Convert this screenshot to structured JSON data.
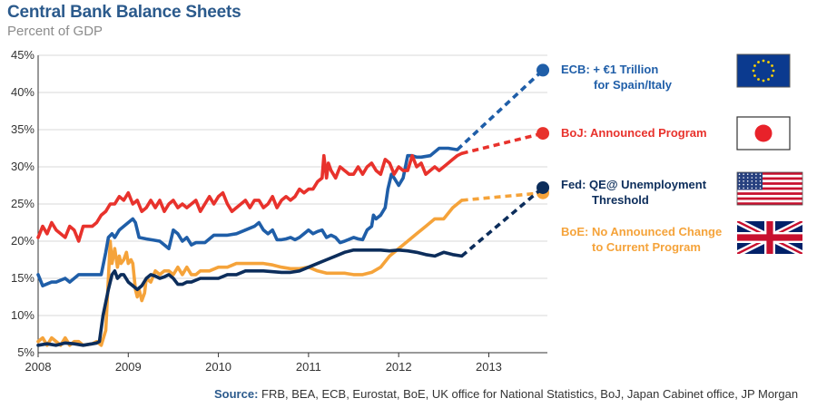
{
  "title": "Central Bank Balance Sheets",
  "subtitle": "Percent of GDP",
  "source_label": "Source:",
  "source_text": " FRB, BEA, ECB, Eurostat, BoE, UK office for National Statistics, BoJ, Japan Cabinet office, JP Morgan",
  "chart_data": {
    "type": "line",
    "title": "Central Bank Balance Sheets",
    "subtitle": "Percent of GDP",
    "x_ticks": [
      "2008",
      "2009",
      "2010",
      "2011",
      "2012",
      "2013"
    ],
    "y_ticks": [
      "5%",
      "10%",
      "15%",
      "20%",
      "25%",
      "30%",
      "35%",
      "40%",
      "45%"
    ],
    "xlim": [
      2008,
      2013.65
    ],
    "ylim": [
      5,
      45
    ],
    "grid": "horizontal",
    "series": [
      {
        "name": "ECB",
        "label": [
          "ECB: + €1 Trillion",
          "for Spain/Italy"
        ],
        "color": "#1f5ea8",
        "x": [
          2008.0,
          2008.05,
          2008.15,
          2008.2,
          2008.3,
          2008.35,
          2008.45,
          2008.6,
          2008.7,
          2008.75,
          2008.78,
          2008.82,
          2008.85,
          2008.9,
          2008.95,
          2009.0,
          2009.05,
          2009.08,
          2009.12,
          2009.2,
          2009.35,
          2009.45,
          2009.5,
          2009.55,
          2009.6,
          2009.65,
          2009.7,
          2009.75,
          2009.85,
          2009.95,
          2010.0,
          2010.1,
          2010.2,
          2010.3,
          2010.4,
          2010.45,
          2010.5,
          2010.55,
          2010.6,
          2010.65,
          2010.7,
          2010.75,
          2010.8,
          2010.85,
          2010.9,
          2010.95,
          2011.0,
          2011.05,
          2011.1,
          2011.15,
          2011.2,
          2011.25,
          2011.3,
          2011.35,
          2011.4,
          2011.5,
          2011.55,
          2011.6,
          2011.65,
          2011.7,
          2011.72,
          2011.75,
          2011.8,
          2011.85,
          2011.88,
          2011.92,
          2011.95,
          2012.0,
          2012.05,
          2012.1,
          2012.15,
          2012.2,
          2012.25,
          2012.35,
          2012.45,
          2012.55,
          2012.65
        ],
        "values": [
          15.5,
          14.0,
          14.5,
          14.5,
          15.0,
          14.5,
          15.5,
          15.5,
          15.5,
          18.5,
          20.5,
          21.0,
          20.5,
          21.5,
          22.0,
          22.5,
          23.0,
          22.5,
          20.5,
          20.3,
          20.0,
          19.0,
          21.5,
          21.0,
          20.0,
          20.5,
          19.5,
          19.8,
          19.8,
          20.8,
          20.8,
          20.8,
          21.0,
          21.5,
          22.0,
          22.5,
          21.5,
          21.0,
          21.5,
          20.2,
          20.2,
          20.3,
          20.5,
          20.2,
          20.5,
          21.0,
          21.5,
          21.0,
          21.3,
          21.5,
          20.5,
          20.8,
          20.5,
          19.8,
          20.0,
          20.5,
          20.3,
          20.2,
          21.5,
          22.0,
          23.5,
          23.0,
          23.5,
          24.5,
          27.0,
          29.0,
          28.5,
          27.5,
          28.5,
          31.5,
          31.5,
          31.3,
          31.3,
          31.5,
          32.5,
          32.5,
          32.3
        ],
        "projection": {
          "x": [
            2012.65,
            2013.6
          ],
          "values": [
            32.3,
            43.0
          ]
        }
      },
      {
        "name": "BoJ",
        "label": [
          "BoJ: Announced Program"
        ],
        "color": "#e8322c",
        "x": [
          2008.0,
          2008.05,
          2008.1,
          2008.15,
          2008.2,
          2008.25,
          2008.3,
          2008.35,
          2008.4,
          2008.45,
          2008.5,
          2008.55,
          2008.6,
          2008.65,
          2008.7,
          2008.75,
          2008.8,
          2008.85,
          2008.9,
          2008.95,
          2009.0,
          2009.05,
          2009.1,
          2009.15,
          2009.2,
          2009.25,
          2009.3,
          2009.35,
          2009.4,
          2009.45,
          2009.5,
          2009.55,
          2009.6,
          2009.65,
          2009.7,
          2009.75,
          2009.8,
          2009.85,
          2009.9,
          2009.95,
          2010.0,
          2010.05,
          2010.1,
          2010.15,
          2010.2,
          2010.25,
          2010.3,
          2010.35,
          2010.4,
          2010.45,
          2010.5,
          2010.55,
          2010.6,
          2010.65,
          2010.7,
          2010.75,
          2010.8,
          2010.85,
          2010.9,
          2010.95,
          2011.0,
          2011.05,
          2011.1,
          2011.15,
          2011.17,
          2011.2,
          2011.22,
          2011.25,
          2011.3,
          2011.35,
          2011.4,
          2011.45,
          2011.5,
          2011.55,
          2011.6,
          2011.65,
          2011.7,
          2011.75,
          2011.8,
          2011.85,
          2011.9,
          2011.95,
          2012.0,
          2012.05,
          2012.1,
          2012.15,
          2012.2,
          2012.25,
          2012.3,
          2012.35,
          2012.4,
          2012.45,
          2012.5,
          2012.55,
          2012.6,
          2012.65,
          2012.7
        ],
        "values": [
          20.5,
          22.0,
          21.0,
          22.5,
          21.5,
          21.0,
          20.5,
          22.0,
          21.5,
          20.0,
          22.0,
          22.0,
          22.0,
          22.5,
          23.5,
          24.0,
          25.0,
          25.0,
          26.0,
          25.5,
          26.5,
          25.0,
          25.5,
          24.0,
          24.5,
          25.5,
          24.5,
          25.5,
          24.0,
          25.0,
          25.5,
          24.5,
          25.0,
          24.5,
          25.0,
          25.5,
          24.0,
          25.0,
          26.0,
          25.0,
          26.0,
          26.5,
          25.0,
          24.0,
          24.5,
          25.0,
          25.5,
          24.5,
          25.5,
          25.5,
          24.5,
          25.0,
          26.0,
          24.5,
          25.5,
          26.0,
          25.5,
          26.0,
          27.0,
          26.5,
          27.0,
          27.0,
          28.0,
          28.5,
          31.5,
          28.5,
          30.5,
          29.5,
          28.5,
          30.0,
          29.5,
          29.0,
          29.0,
          30.0,
          29.0,
          30.0,
          30.5,
          29.5,
          29.0,
          31.0,
          30.5,
          29.0,
          30.0,
          29.5,
          29.5,
          31.5,
          30.0,
          30.5,
          29.0,
          29.5,
          30.0,
          29.5,
          30.0,
          30.5,
          31.0,
          31.5,
          31.8
        ],
        "projection": {
          "x": [
            2012.7,
            2013.6
          ],
          "values": [
            31.8,
            34.5
          ]
        }
      },
      {
        "name": "Fed",
        "label": [
          "Fed: QE@ Unemployment",
          "Threshold"
        ],
        "color": "#0c2d5b",
        "x": [
          2008.0,
          2008.1,
          2008.2,
          2008.3,
          2008.4,
          2008.5,
          2008.6,
          2008.65,
          2008.68,
          2008.72,
          2008.78,
          2008.82,
          2008.85,
          2008.88,
          2008.92,
          2008.95,
          2009.0,
          2009.05,
          2009.1,
          2009.15,
          2009.2,
          2009.25,
          2009.3,
          2009.35,
          2009.4,
          2009.45,
          2009.5,
          2009.55,
          2009.6,
          2009.65,
          2009.7,
          2009.8,
          2009.9,
          2010.0,
          2010.1,
          2010.2,
          2010.3,
          2010.5,
          2010.7,
          2010.8,
          2010.9,
          2011.0,
          2011.1,
          2011.2,
          2011.3,
          2011.4,
          2011.5,
          2011.6,
          2011.7,
          2011.8,
          2011.9,
          2012.0,
          2012.1,
          2012.2,
          2012.3,
          2012.4,
          2012.5,
          2012.6,
          2012.7
        ],
        "values": [
          6.0,
          6.2,
          6.0,
          6.3,
          6.2,
          6.0,
          6.2,
          6.3,
          6.5,
          10.0,
          13.5,
          15.5,
          16.0,
          15.0,
          15.5,
          15.5,
          14.5,
          14.0,
          13.5,
          14.0,
          15.0,
          15.5,
          15.3,
          15.0,
          15.2,
          15.5,
          15.0,
          14.2,
          14.2,
          14.5,
          14.5,
          15.0,
          15.0,
          15.0,
          15.5,
          15.5,
          16.0,
          16.0,
          15.8,
          15.8,
          16.0,
          16.5,
          17.0,
          17.5,
          18.0,
          18.5,
          18.8,
          18.8,
          18.8,
          18.8,
          18.7,
          18.8,
          18.7,
          18.5,
          18.2,
          18.0,
          18.5,
          18.2,
          18.0
        ],
        "projection": {
          "x": [
            2012.7,
            2013.6
          ],
          "values": [
            18.0,
            27.2
          ]
        }
      },
      {
        "name": "BoE",
        "label": [
          "BoE: No Announced Change",
          "to Current Program"
        ],
        "color": "#f5a33a",
        "x": [
          2008.0,
          2008.05,
          2008.1,
          2008.15,
          2008.2,
          2008.25,
          2008.3,
          2008.35,
          2008.4,
          2008.45,
          2008.5,
          2008.6,
          2008.65,
          2008.7,
          2008.75,
          2008.78,
          2008.8,
          2008.82,
          2008.85,
          2008.88,
          2008.9,
          2008.92,
          2008.95,
          2008.98,
          2009.0,
          2009.03,
          2009.05,
          2009.08,
          2009.1,
          2009.12,
          2009.15,
          2009.18,
          2009.2,
          2009.25,
          2009.3,
          2009.35,
          2009.4,
          2009.45,
          2009.5,
          2009.55,
          2009.6,
          2009.65,
          2009.7,
          2009.75,
          2009.8,
          2009.85,
          2009.9,
          2010.0,
          2010.1,
          2010.2,
          2010.3,
          2010.4,
          2010.5,
          2010.6,
          2010.7,
          2010.8,
          2010.9,
          2011.0,
          2011.1,
          2011.2,
          2011.3,
          2011.4,
          2011.5,
          2011.6,
          2011.7,
          2011.8,
          2011.9,
          2012.0,
          2012.1,
          2012.2,
          2012.3,
          2012.4,
          2012.5,
          2012.6,
          2012.7
        ],
        "values": [
          6.5,
          7.0,
          6.0,
          7.0,
          6.5,
          6.0,
          7.0,
          6.0,
          6.5,
          6.5,
          6.0,
          6.2,
          6.5,
          6.0,
          8.0,
          15.0,
          20.0,
          17.0,
          19.0,
          16.5,
          18.0,
          17.0,
          17.5,
          18.5,
          17.0,
          17.5,
          17.0,
          13.5,
          12.5,
          13.5,
          12.0,
          13.0,
          15.0,
          14.5,
          16.0,
          15.5,
          16.0,
          16.0,
          15.5,
          16.5,
          15.5,
          16.5,
          15.5,
          15.5,
          16.0,
          16.0,
          16.0,
          16.5,
          16.5,
          17.0,
          17.0,
          17.0,
          17.0,
          16.8,
          16.5,
          16.3,
          16.3,
          16.5,
          16.0,
          15.7,
          15.7,
          15.7,
          15.5,
          15.5,
          15.8,
          16.5,
          18.0,
          19.0,
          20.0,
          21.0,
          22.0,
          23.0,
          23.0,
          24.5,
          25.5
        ],
        "projection": {
          "x": [
            2012.7,
            2013.6
          ],
          "values": [
            25.5,
            26.5
          ]
        }
      }
    ]
  },
  "flags": [
    {
      "name": "eu-flag-icon",
      "series": "ECB"
    },
    {
      "name": "japan-flag-icon",
      "series": "BoJ"
    },
    {
      "name": "us-flag-icon",
      "series": "Fed"
    },
    {
      "name": "uk-flag-icon",
      "series": "BoE"
    }
  ]
}
